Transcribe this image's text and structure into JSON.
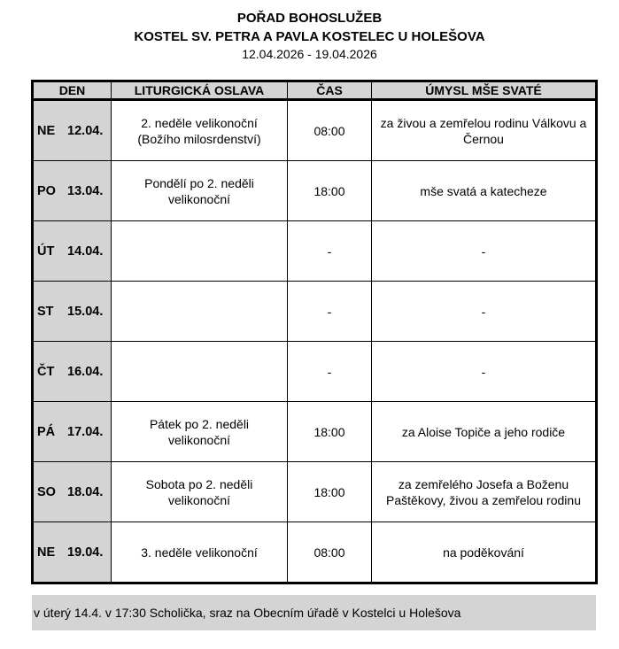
{
  "header": {
    "title": "POŘAD BOHOSLUŽEB",
    "subtitle": "KOSTEL SV. PETRA A PAVLA KOSTELEC U HOLEŠOVA",
    "dates": "12.04.2026 - 19.04.2026"
  },
  "table": {
    "columns": [
      "DEN",
      "LITURGICKÁ OSLAVA",
      "ČAS",
      "ÚMYSL MŠE SVATÉ"
    ],
    "rows": [
      {
        "day": "NE",
        "date": "12.04.",
        "celebration": "2. neděle velikonoční (Božího milosrdenství)",
        "time": "08:00",
        "intention": "za živou a zemřelou rodinu Válkovu a Černou"
      },
      {
        "day": "PO",
        "date": "13.04.",
        "celebration": "Pondělí po 2. neděli velikonoční",
        "time": "18:00",
        "intention": "mše svatá a katecheze"
      },
      {
        "day": "ÚT",
        "date": "14.04.",
        "celebration": "",
        "time": "-",
        "intention": "-"
      },
      {
        "day": "ST",
        "date": "15.04.",
        "celebration": "",
        "time": "-",
        "intention": "-"
      },
      {
        "day": "ČT",
        "date": "16.04.",
        "celebration": "",
        "time": "-",
        "intention": "-"
      },
      {
        "day": "PÁ",
        "date": "17.04.",
        "celebration": "Pátek po 2. neděli velikonoční",
        "time": "18:00",
        "intention": "za Aloise Topiče a jeho rodiče"
      },
      {
        "day": "SO",
        "date": "18.04.",
        "celebration": "Sobota po 2. neděli velikonoční",
        "time": "18:00",
        "intention": "za zemřelého Josefa a Boženu Paštěkovy, živou a zemřelou rodinu"
      },
      {
        "day": "NE",
        "date": "19.04.",
        "celebration": "3. neděle velikonoční",
        "time": "08:00",
        "intention": "na poděkování"
      }
    ]
  },
  "footer": {
    "note": "v úterý 14.4. v 17:30 Scholička, sraz na Obecním úřadě v Kostelci u Holešova"
  }
}
